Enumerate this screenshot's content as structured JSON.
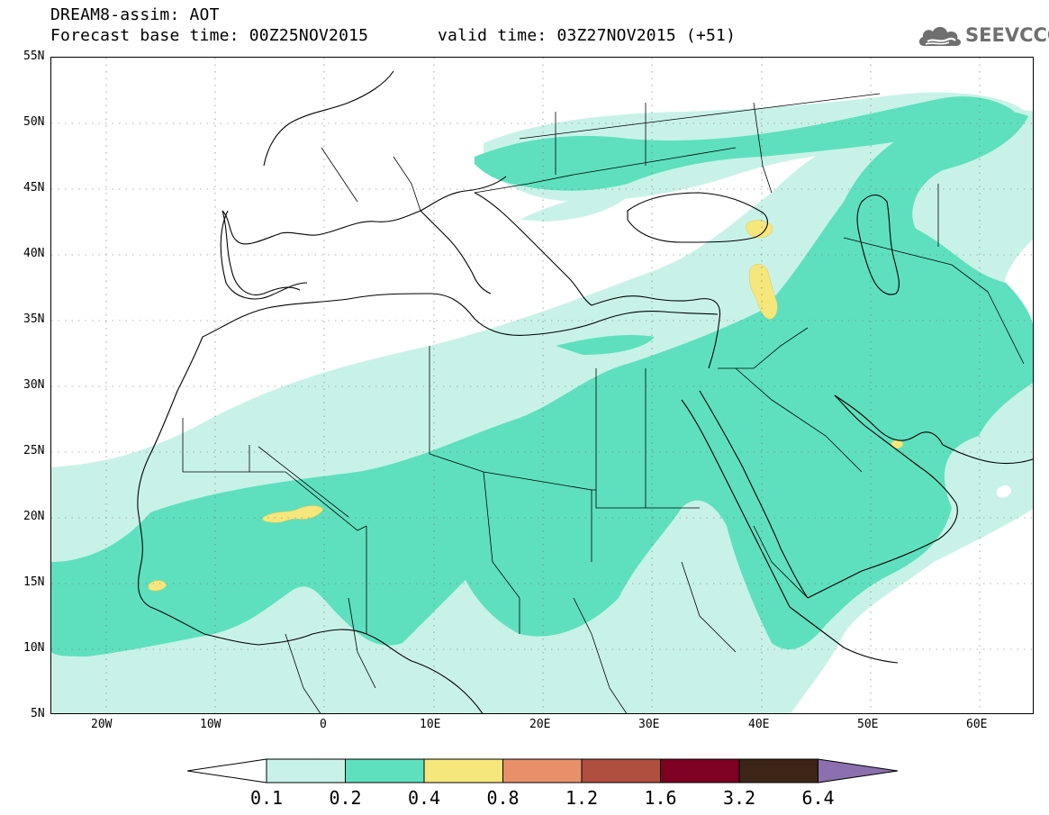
{
  "header": {
    "title": "DREAM8-assim: AOT",
    "base_time": "Forecast base time: 00Z25NOV2015",
    "valid_time": "valid time: 03Z27NOV2015 (+51)"
  },
  "logo": {
    "text": "SEEVCCC",
    "icon": "cloud-icon",
    "color": "#6f6f6f"
  },
  "map": {
    "lon_range": [
      -25,
      65
    ],
    "lat_range": [
      5,
      55
    ],
    "lat_labels": [
      "55N",
      "50N",
      "45N",
      "40N",
      "35N",
      "30N",
      "25N",
      "20N",
      "15N",
      "10N",
      "5N"
    ],
    "lon_labels": [
      "20W",
      "10W",
      "0",
      "10E",
      "20E",
      "30E",
      "40E",
      "50E",
      "60E"
    ],
    "gridlines": "dotted"
  },
  "legend": {
    "levels": [
      "0.1",
      "0.2",
      "0.4",
      "0.8",
      "1.2",
      "1.6",
      "3.2",
      "6.4"
    ],
    "colors": [
      "#c8f2e8",
      "#5ee0be",
      "#f5e77b",
      "#e8906a",
      "#b04e40",
      "#7e0022",
      "#3c2417",
      "#8c6fae"
    ],
    "extend": "both"
  }
}
